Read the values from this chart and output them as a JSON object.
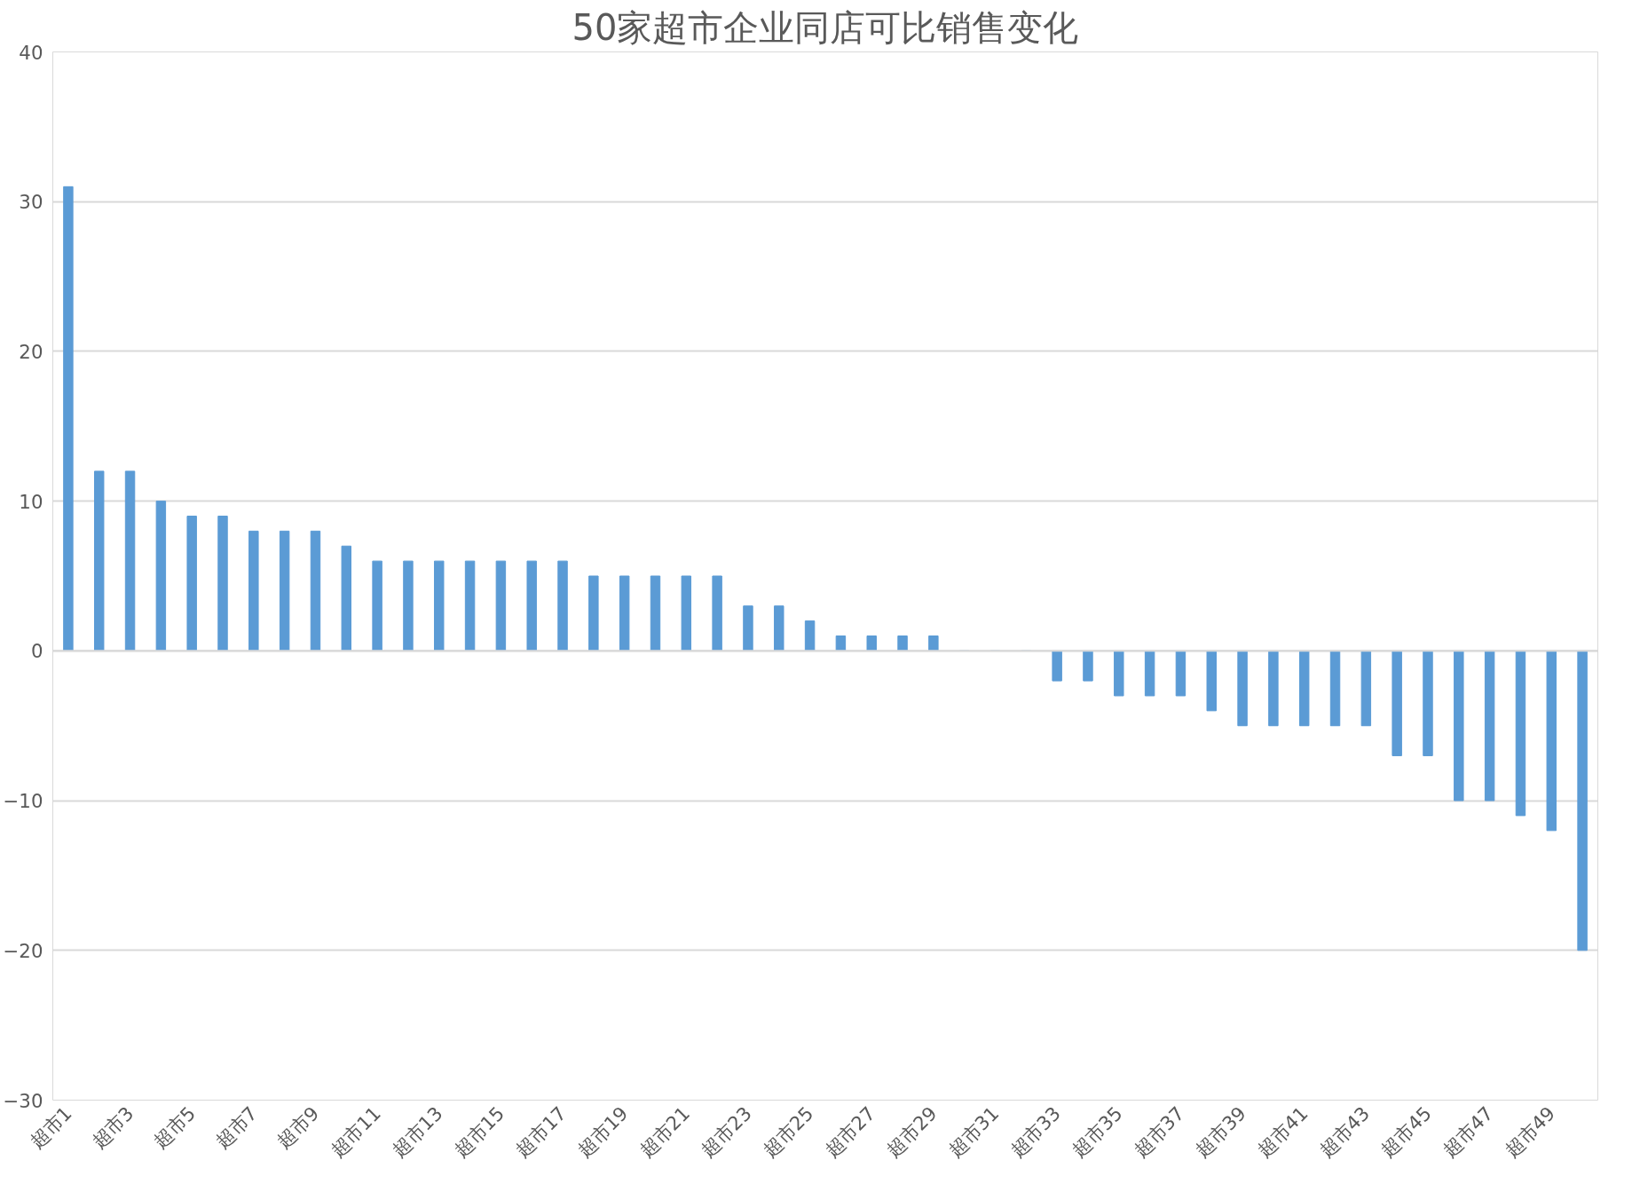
{
  "chart_data": {
    "type": "bar",
    "title": "50家超市企业同店可比销售变化",
    "categories": [
      "超市1",
      null,
      "超市3",
      null,
      "超市5",
      null,
      "超市7",
      null,
      "超市9",
      null,
      "超市11",
      null,
      "超市13",
      null,
      "超市15",
      null,
      "超市17",
      null,
      "超市19",
      null,
      "超市21",
      null,
      "超市23",
      null,
      "超市25",
      null,
      "超市27",
      null,
      "超市29",
      null,
      "超市31",
      null,
      "超市33",
      null,
      "超市35",
      null,
      "超市37",
      null,
      "超市39",
      null,
      "超市41",
      null,
      "超市43",
      null,
      "超市45",
      null,
      "超市47",
      null,
      "超市49",
      null
    ],
    "values": [
      31,
      12,
      12,
      10,
      9,
      9,
      8,
      8,
      8,
      7,
      6,
      6,
      6,
      6,
      6,
      6,
      6,
      5,
      5,
      5,
      5,
      5,
      3,
      3,
      2,
      1,
      1,
      1,
      1,
      0,
      0,
      0,
      -2,
      -2,
      -3,
      -3,
      -3,
      -4,
      -5,
      -5,
      -5,
      -5,
      -5,
      -7,
      -7,
      -10,
      -10,
      -11,
      -12,
      -20
    ],
    "color": "#5b9bd5",
    "ylim": [
      -30,
      40
    ],
    "yticks": [
      -30,
      -20,
      -10,
      0,
      10,
      20,
      30,
      40
    ],
    "grid": "y"
  }
}
